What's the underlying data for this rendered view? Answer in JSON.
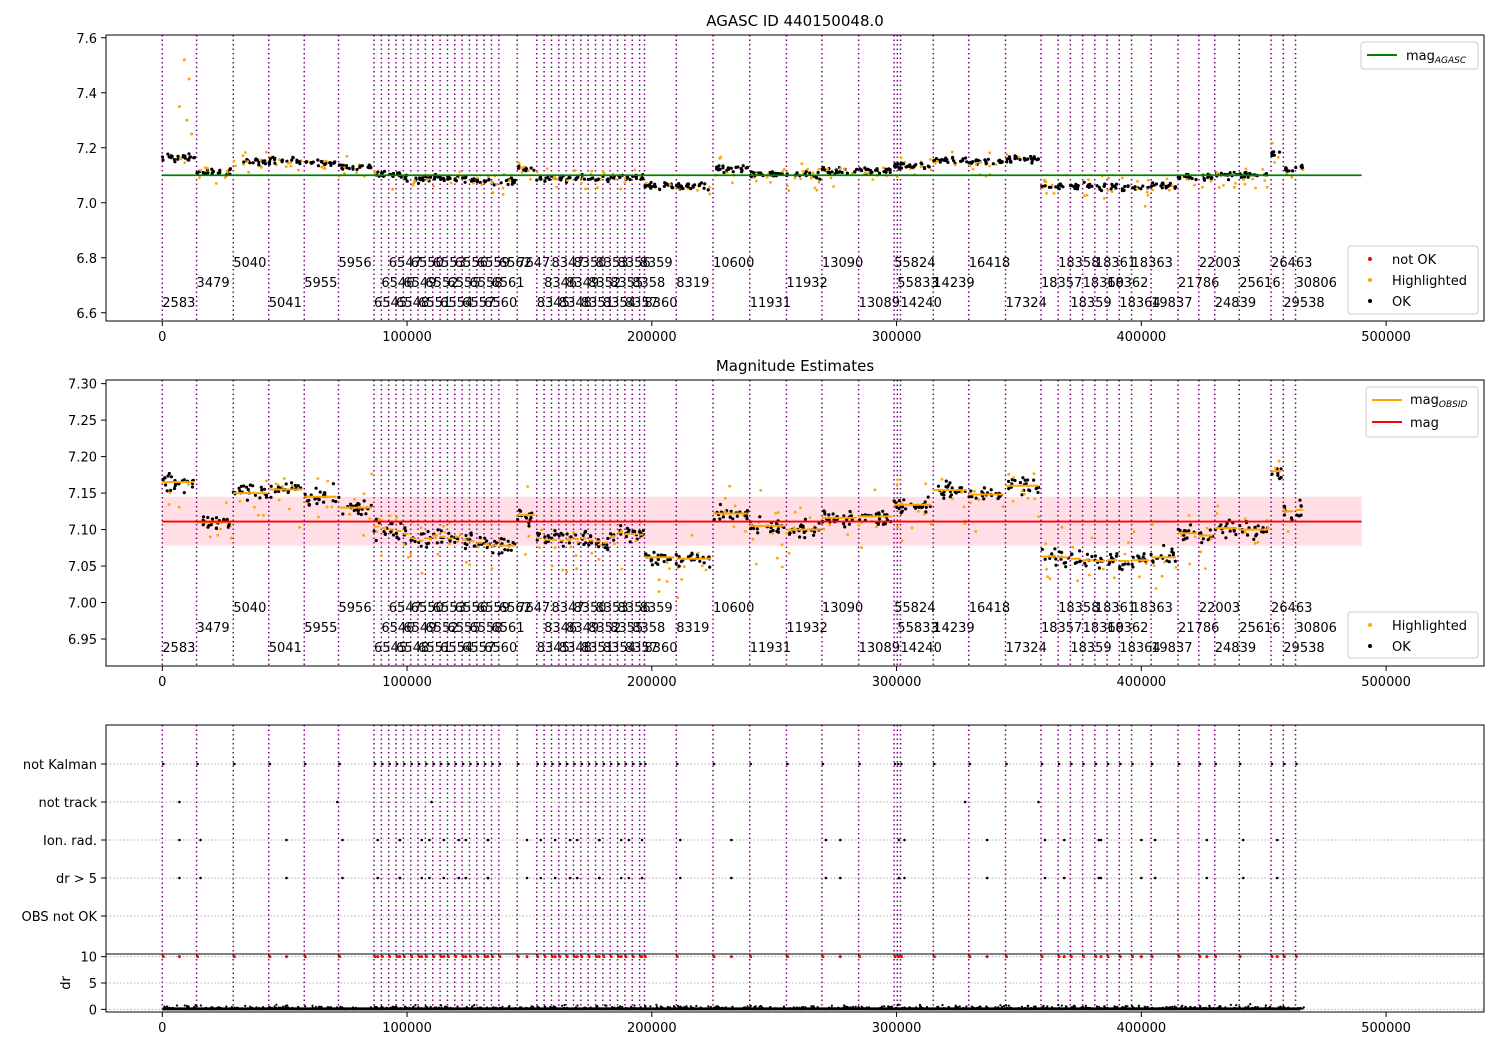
{
  "chart_data": [
    {
      "type": "scatter",
      "title": "AGASC ID 440150048.0",
      "xlim": [
        -23000,
        540000
      ],
      "ylim": [
        6.57,
        7.61
      ],
      "x_ticks": [
        0,
        100000,
        200000,
        300000,
        400000,
        500000
      ],
      "y_ticks": [
        6.6,
        6.8,
        7.0,
        7.2,
        7.4,
        7.6
      ],
      "legends": [
        {
          "position": "top-right",
          "entries": [
            {
              "label": "mag",
              "sub": "AGASC",
              "marker": "line",
              "color": "#008000"
            }
          ]
        },
        {
          "position": "lower-right",
          "entries": [
            {
              "label": "not OK",
              "marker": "dot",
              "color": "#ff0000"
            },
            {
              "label": "Highlighted",
              "marker": "dot",
              "color": "#ffa500"
            },
            {
              "label": "OK",
              "marker": "dot",
              "color": "#000000"
            }
          ]
        }
      ],
      "reference_line": {
        "name": "mag_AGASC",
        "y": 7.1,
        "x_range": [
          0,
          490000
        ],
        "color": "#008000"
      }
    },
    {
      "type": "scatter",
      "title": "Magnitude Estimates",
      "xlim": [
        -23000,
        540000
      ],
      "ylim": [
        6.913,
        7.305
      ],
      "x_ticks": [
        0,
        100000,
        200000,
        300000,
        400000,
        500000
      ],
      "y_ticks": [
        6.95,
        7.0,
        7.05,
        7.1,
        7.15,
        7.2,
        7.25,
        7.3
      ],
      "legends": [
        {
          "position": "top-right",
          "entries": [
            {
              "label": "mag",
              "sub": "OBSID",
              "marker": "line",
              "color": "#ffa500"
            },
            {
              "label": "mag",
              "marker": "line",
              "color": "#ff0000"
            }
          ]
        },
        {
          "position": "lower-right",
          "entries": [
            {
              "label": "Highlighted",
              "marker": "dot",
              "color": "#ffa500"
            },
            {
              "label": "OK",
              "marker": "dot",
              "color": "#000000"
            }
          ]
        }
      ],
      "mean_mag": 7.111,
      "mag_band": [
        7.078,
        7.145
      ],
      "band_color": "#ffc0cb"
    },
    {
      "type": "scatter",
      "title": "",
      "xlim": [
        -23000,
        540000
      ],
      "x_ticks": [
        0,
        100000,
        200000,
        300000,
        400000,
        500000
      ],
      "flag_rows": [
        "not Kalman",
        "not track",
        "Ion. rad.",
        "dr > 5",
        "OBS not OK"
      ],
      "dr_ylabel": "dr",
      "dr_ylim": [
        -0.5,
        10.5
      ],
      "dr_ticks": [
        0,
        5,
        10
      ]
    }
  ],
  "observations": [
    {
      "obsid": "2583",
      "x": 0,
      "row": 2,
      "mag": 7.165
    },
    {
      "obsid": "3479",
      "x": 14000,
      "row": 1,
      "mag": 7.11
    },
    {
      "obsid": "5040",
      "x": 29000,
      "row": 0,
      "mag": 7.15
    },
    {
      "obsid": "5041",
      "x": 43500,
      "row": 2,
      "mag": 7.155
    },
    {
      "obsid": "5955",
      "x": 58000,
      "row": 1,
      "mag": 7.145
    },
    {
      "obsid": "5956",
      "x": 72000,
      "row": 0,
      "mag": 7.13
    },
    {
      "obsid": "6545",
      "x": 86500,
      "row": 2,
      "mag": 7.104
    },
    {
      "obsid": "6546",
      "x": 89500,
      "row": 1,
      "mag": 7.102
    },
    {
      "obsid": "6547",
      "x": 92500,
      "row": 0,
      "mag": 7.1
    },
    {
      "obsid": "6548",
      "x": 95500,
      "row": 2,
      "mag": 7.098
    },
    {
      "obsid": "6549",
      "x": 98500,
      "row": 1,
      "mag": 7.094
    },
    {
      "obsid": "6550",
      "x": 101500,
      "row": 0,
      "mag": 7.088
    },
    {
      "obsid": "6551",
      "x": 104500,
      "row": 2,
      "mag": 7.085
    },
    {
      "obsid": "6552",
      "x": 107500,
      "row": 1,
      "mag": 7.088
    },
    {
      "obsid": "6553",
      "x": 110500,
      "row": 0,
      "mag": 7.092
    },
    {
      "obsid": "6554",
      "x": 113500,
      "row": 2,
      "mag": 7.09
    },
    {
      "obsid": "6555",
      "x": 116500,
      "row": 1,
      "mag": 7.088
    },
    {
      "obsid": "6556",
      "x": 119500,
      "row": 0,
      "mag": 7.09
    },
    {
      "obsid": "6557",
      "x": 122500,
      "row": 2,
      "mag": 7.086
    },
    {
      "obsid": "6558",
      "x": 125500,
      "row": 1,
      "mag": 7.084
    },
    {
      "obsid": "6559",
      "x": 128500,
      "row": 0,
      "mag": 7.082
    },
    {
      "obsid": "6560",
      "x": 131500,
      "row": 2,
      "mag": 7.08
    },
    {
      "obsid": "6561",
      "x": 134500,
      "row": 1,
      "mag": 7.078
    },
    {
      "obsid": "6562",
      "x": 137500,
      "row": 0,
      "mag": 7.078
    },
    {
      "obsid": "7647",
      "x": 145000,
      "row": 0,
      "mag": 7.12
    },
    {
      "obsid": "8345",
      "x": 153000,
      "row": 2,
      "mag": 7.088
    },
    {
      "obsid": "8346",
      "x": 156000,
      "row": 1,
      "mag": 7.086
    },
    {
      "obsid": "8347",
      "x": 159000,
      "row": 0,
      "mag": 7.086
    },
    {
      "obsid": "8348",
      "x": 162000,
      "row": 2,
      "mag": 7.085
    },
    {
      "obsid": "8349",
      "x": 165000,
      "row": 1,
      "mag": 7.086
    },
    {
      "obsid": "8350",
      "x": 168000,
      "row": 0,
      "mag": 7.087
    },
    {
      "obsid": "8351",
      "x": 171000,
      "row": 2,
      "mag": 7.088
    },
    {
      "obsid": "8352",
      "x": 174000,
      "row": 1,
      "mag": 7.085
    },
    {
      "obsid": "8353",
      "x": 177000,
      "row": 0,
      "mag": 7.084
    },
    {
      "obsid": "8354",
      "x": 180000,
      "row": 2,
      "mag": 7.082
    },
    {
      "obsid": "8355",
      "x": 183000,
      "row": 1,
      "mag": 7.09
    },
    {
      "obsid": "8356",
      "x": 186000,
      "row": 0,
      "mag": 7.096
    },
    {
      "obsid": "8357",
      "x": 189000,
      "row": 2,
      "mag": 7.094
    },
    {
      "obsid": "8358",
      "x": 192000,
      "row": 1,
      "mag": 7.094
    },
    {
      "obsid": "8359",
      "x": 195000,
      "row": 0,
      "mag": 7.093
    },
    {
      "obsid": "8360",
      "x": 197000,
      "row": 2,
      "mag": 7.062
    },
    {
      "obsid": "8319",
      "x": 210000,
      "row": 1,
      "mag": 7.06
    },
    {
      "obsid": "10600",
      "x": 225000,
      "row": 0,
      "mag": 7.122
    },
    {
      "obsid": "11931",
      "x": 240000,
      "row": 2,
      "mag": 7.105
    },
    {
      "obsid": "11932",
      "x": 255000,
      "row": 1,
      "mag": 7.1
    },
    {
      "obsid": "13090",
      "x": 269500,
      "row": 0,
      "mag": 7.116
    },
    {
      "obsid": "13089",
      "x": 284500,
      "row": 2,
      "mag": 7.118
    },
    {
      "obsid": "55824",
      "x": 299000,
      "row": 0,
      "mag": 7.134
    },
    {
      "obsid": "55833",
      "x": 300300,
      "row": 1,
      "mag": 7.134
    },
    {
      "obsid": "14240",
      "x": 301600,
      "row": 2,
      "mag": 7.134
    },
    {
      "obsid": "14239",
      "x": 315000,
      "row": 1,
      "mag": 7.154
    },
    {
      "obsid": "16418",
      "x": 329500,
      "row": 0,
      "mag": 7.148
    },
    {
      "obsid": "17324",
      "x": 344500,
      "row": 2,
      "mag": 7.16
    },
    {
      "obsid": "18357",
      "x": 359000,
      "row": 1,
      "mag": 7.063
    },
    {
      "obsid": "18358",
      "x": 366000,
      "row": 0,
      "mag": 7.062
    },
    {
      "obsid": "18359",
      "x": 371000,
      "row": 2,
      "mag": 7.06
    },
    {
      "obsid": "18360",
      "x": 376000,
      "row": 1,
      "mag": 7.058
    },
    {
      "obsid": "18361",
      "x": 381000,
      "row": 0,
      "mag": 7.057
    },
    {
      "obsid": "18362",
      "x": 386000,
      "row": 1,
      "mag": 7.058
    },
    {
      "obsid": "18364",
      "x": 391000,
      "row": 2,
      "mag": 7.057
    },
    {
      "obsid": "18363",
      "x": 396000,
      "row": 0,
      "mag": 7.058
    },
    {
      "obsid": "19837",
      "x": 404000,
      "row": 2,
      "mag": 7.062
    },
    {
      "obsid": "21786",
      "x": 415000,
      "row": 1,
      "mag": 7.095
    },
    {
      "obsid": "22003",
      "x": 423500,
      "row": 0,
      "mag": 7.092
    },
    {
      "obsid": "24839",
      "x": 430000,
      "row": 2,
      "mag": 7.102
    },
    {
      "obsid": "25616",
      "x": 440000,
      "row": 1,
      "mag": 7.1
    },
    {
      "obsid": "26463",
      "x": 453000,
      "row": 0,
      "mag": 7.18
    },
    {
      "obsid": "29538",
      "x": 458000,
      "row": 2,
      "mag": 7.125
    },
    {
      "obsid": "30806",
      "x": 463000,
      "row": 1,
      "mag": 7.127
    }
  ],
  "colors": {
    "boundary": "#800080",
    "ok": "#000000",
    "highlighted": "#ffa500",
    "not_ok": "#ff0000",
    "obsid_mag": "#ffa500",
    "mean_mag": "#ff0000",
    "agasc_mag": "#008000"
  }
}
